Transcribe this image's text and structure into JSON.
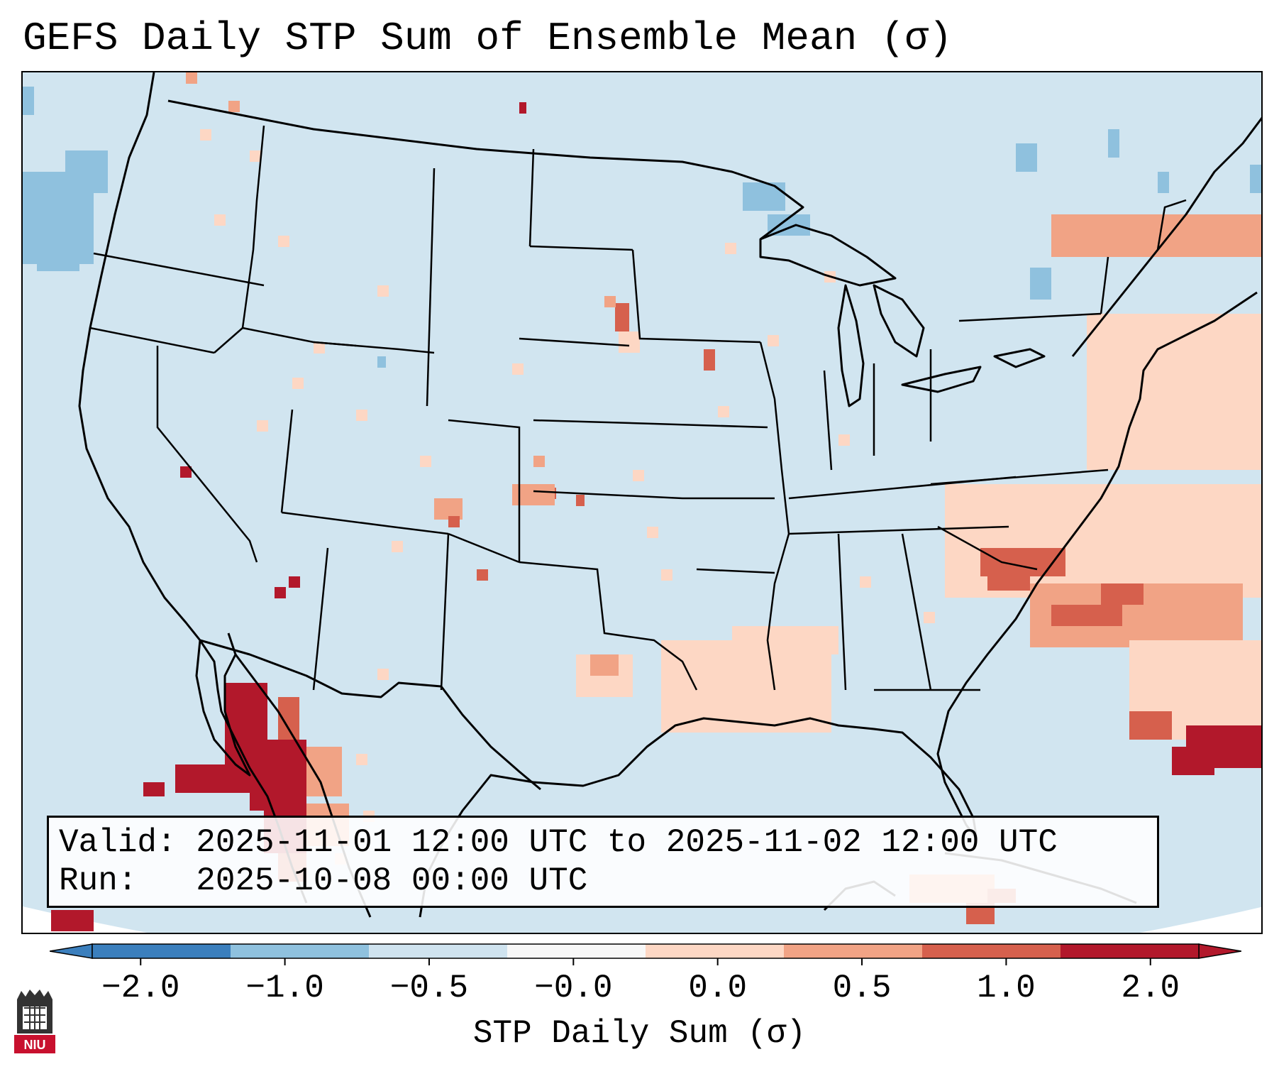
{
  "title": "GEFS Daily STP Sum of Ensemble Mean (σ)",
  "info": {
    "valid": "Valid: 2025-11-01 12:00 UTC to 2025-11-02 12:00 UTC",
    "run": "Run:   2025-10-08 00:00 UTC"
  },
  "colorbar": {
    "label": "STP Daily Sum (σ)",
    "ticks": [
      "−2.0",
      "−1.0",
      "−0.5",
      "−0.0",
      "0.0",
      "0.5",
      "1.0",
      "2.0"
    ],
    "colors": [
      "#3b7fbd",
      "#8fc1de",
      "#cfe3ef",
      "#f7f7f7",
      "#fdd7c4",
      "#f1a385",
      "#d6604d",
      "#b2182b"
    ],
    "extend": "both"
  },
  "map": {
    "background_color": "#d1e5f0",
    "region": "Continental United States, southern Canada, northern Mexico, Gulf of Mexico, western Atlantic",
    "ocean_mask_color": "#ffffff"
  },
  "anomaly_cells": {
    "description": "Grid cells of STP daily-sum anomaly categories",
    "cells": [
      {
        "region": "Gulf of California / Sonora",
        "category": "2.0",
        "color": "#b2182b"
      },
      {
        "region": "Northern Sinaloa coast",
        "category": "2.0",
        "color": "#b2182b"
      },
      {
        "region": "Southern Arizona",
        "category": "2.0",
        "color": "#b2182b"
      },
      {
        "region": "Southern Nevada",
        "category": "2.0",
        "color": "#b2182b"
      },
      {
        "region": "Saskatchewan",
        "category": "2.0",
        "color": "#b2182b"
      },
      {
        "region": "Western Atlantic east of Florida",
        "category": "1.0",
        "color": "#d6604d"
      },
      {
        "region": "Bahamas / Caribbean",
        "category": "2.0",
        "color": "#b2182b"
      },
      {
        "region": "Iowa",
        "category": "1.0",
        "color": "#d6604d"
      },
      {
        "region": "Oklahoma",
        "category": "1.0",
        "color": "#d6604d"
      },
      {
        "region": "Gulf of Mexico",
        "category": "0.0",
        "color": "#fdd7c4"
      },
      {
        "region": "Lake Superior",
        "category": "-1.0",
        "color": "#8fc1de"
      },
      {
        "region": "Pacific off Washington",
        "category": "-1.0",
        "color": "#8fc1de"
      }
    ]
  },
  "logo": {
    "name": "NIU",
    "text": "NIU"
  }
}
